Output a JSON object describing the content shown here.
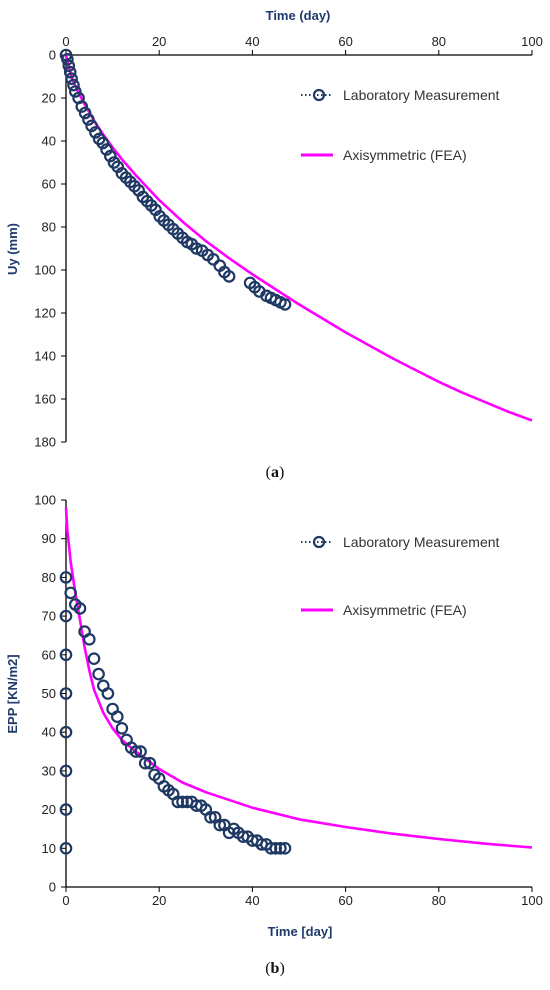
{
  "chart_data": [
    {
      "type": "scatter",
      "panel_label": "a",
      "xlabel": "Time (day)",
      "ylabel": "Uy (mm)",
      "xlim": [
        0,
        100
      ],
      "ylim": [
        0,
        180
      ],
      "y_inverted": true,
      "x_axis_position": "top",
      "xticks": [
        0,
        20,
        40,
        60,
        80,
        100
      ],
      "yticks": [
        0,
        20,
        40,
        60,
        80,
        100,
        120,
        140,
        160,
        180
      ],
      "legend_position": "top-right",
      "series": [
        {
          "name": "Laboratory Measurement",
          "style": "markers-dotted",
          "color": "#1f3864",
          "x": [
            0,
            0.3,
            0.6,
            0.9,
            1.2,
            1.6,
            2,
            2.7,
            3.4,
            4.1,
            4.8,
            5.5,
            6.3,
            7.1,
            7.9,
            8.7,
            9.5,
            10.3,
            11.1,
            12,
            12.9,
            13.8,
            14.7,
            15.6,
            16.5,
            17.4,
            18.3,
            19.2,
            20.1,
            21,
            22,
            23,
            24,
            25,
            26,
            27,
            28,
            29.2,
            30.4,
            31.6,
            33,
            34,
            35,
            39.5,
            40.5,
            41.5,
            43,
            44,
            45,
            46,
            47
          ],
          "y": [
            0,
            2,
            5,
            8,
            11,
            14,
            17,
            20,
            24,
            27,
            30,
            33,
            36,
            39,
            41,
            44,
            47,
            50,
            52,
            55,
            57,
            59,
            61,
            63,
            66,
            68,
            70,
            72,
            75,
            77,
            79,
            81,
            83,
            85,
            87,
            88,
            90,
            91,
            93,
            95,
            98,
            101,
            103,
            106,
            108,
            110,
            112,
            113,
            114,
            115,
            116
          ]
        },
        {
          "name": "Axisymmetric (FEA)",
          "style": "line",
          "color": "#ff00ff",
          "x": [
            0,
            1,
            2,
            4,
            6,
            8,
            10,
            12,
            15,
            20,
            25,
            30,
            35,
            40,
            45,
            50,
            55,
            60,
            65,
            70,
            75,
            80,
            85,
            90,
            95,
            100
          ],
          "y": [
            0,
            9,
            14.5,
            23,
            30.5,
            37,
            43,
            48.5,
            56,
            67.5,
            77.5,
            86.5,
            94.5,
            102,
            109,
            116,
            122.5,
            129,
            135,
            141,
            146.5,
            152,
            157,
            161.5,
            166,
            170
          ]
        }
      ]
    },
    {
      "type": "scatter",
      "panel_label": "b",
      "xlabel": "Time [day]",
      "ylabel": "EPP [KN/m2]",
      "xlim": [
        0,
        100
      ],
      "ylim": [
        0,
        100
      ],
      "y_inverted": false,
      "x_axis_position": "bottom",
      "xticks": [
        0,
        20,
        40,
        60,
        80,
        100
      ],
      "yticks": [
        0,
        10,
        20,
        30,
        40,
        50,
        60,
        70,
        80,
        90,
        100
      ],
      "legend_position": "top-right",
      "series": [
        {
          "name": "Laboratory Measurement",
          "style": "markers-dotted",
          "color": "#1f3864",
          "x": [
            0,
            0,
            0,
            0,
            0,
            0,
            0,
            0,
            1,
            2,
            3,
            4,
            5,
            6,
            7,
            8,
            9,
            10,
            11,
            12,
            13,
            14,
            15,
            16,
            17,
            18,
            19,
            20,
            21,
            22,
            23,
            24,
            25,
            26,
            27,
            28,
            29,
            30,
            31,
            32,
            33,
            34,
            35,
            36,
            37,
            38,
            39,
            40,
            41,
            42,
            43,
            44,
            45,
            46,
            47
          ],
          "y": [
            10,
            20,
            30,
            40,
            50,
            60,
            70,
            80,
            76,
            73,
            72,
            66,
            64,
            59,
            55,
            52,
            50,
            46,
            44,
            41,
            38,
            36,
            35,
            35,
            32,
            32,
            29,
            28,
            26,
            25,
            24,
            22,
            22,
            22,
            22,
            21,
            21,
            20,
            18,
            18,
            16,
            16,
            14,
            15,
            14,
            13,
            13,
            12,
            12,
            11,
            11,
            10,
            10,
            10,
            10
          ]
        },
        {
          "name": "Axisymmetric (FEA)",
          "style": "line",
          "color": "#ff00ff",
          "x": [
            0,
            0.3,
            1,
            2,
            3,
            4,
            5,
            6,
            8,
            10,
            12,
            15,
            20,
            25,
            30,
            40,
            50,
            60,
            70,
            80,
            90,
            100
          ],
          "y": [
            98,
            92,
            84,
            76,
            69,
            62,
            56,
            51,
            45,
            41,
            38,
            35,
            30.5,
            27,
            24.5,
            20.5,
            17.5,
            15.5,
            13.8,
            12.4,
            11.2,
            10.2
          ]
        }
      ]
    }
  ]
}
